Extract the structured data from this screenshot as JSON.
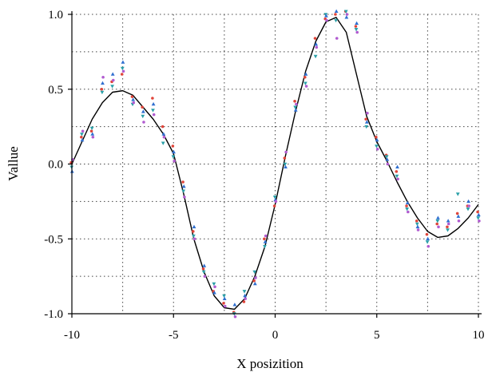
{
  "chart_data": {
    "type": "line",
    "title": "",
    "xlabel": "X posizition",
    "ylabel": "Vallue",
    "xlim": [
      -10,
      10
    ],
    "ylim": [
      -1.0,
      1.0
    ],
    "x_ticks": [
      -10,
      -5,
      0,
      5,
      10
    ],
    "x_tick_labels": [
      "-10",
      "-5",
      "0",
      "5",
      "10"
    ],
    "y_ticks": [
      -1.0,
      -0.5,
      0.0,
      0.5,
      1.0
    ],
    "y_tick_labels": [
      "-1.0",
      "-0.5",
      "0.0",
      "0.5",
      "1.0"
    ],
    "grid": true,
    "grid_style": "dotted",
    "curve": {
      "color": "#000000",
      "x": [
        -10,
        -9.5,
        -9,
        -8.5,
        -8,
        -7.5,
        -7,
        -6.5,
        -6,
        -5.5,
        -5,
        -4.5,
        -4,
        -3.5,
        -3,
        -2.5,
        -2,
        -1.5,
        -1,
        -0.5,
        0,
        0.5,
        1,
        1.5,
        2,
        2.5,
        3,
        3.5,
        4,
        4.5,
        5,
        5.5,
        6,
        6.5,
        7,
        7.5,
        8,
        8.5,
        9,
        9.5,
        10
      ],
      "y": [
        0.0,
        0.15,
        0.3,
        0.41,
        0.48,
        0.49,
        0.46,
        0.38,
        0.3,
        0.2,
        0.07,
        -0.2,
        -0.5,
        -0.72,
        -0.88,
        -0.96,
        -0.97,
        -0.9,
        -0.75,
        -0.55,
        -0.27,
        0.05,
        0.35,
        0.62,
        0.82,
        0.95,
        0.98,
        0.88,
        0.6,
        0.32,
        0.15,
        0.02,
        -0.12,
        -0.25,
        -0.36,
        -0.45,
        -0.49,
        -0.48,
        -0.43,
        -0.36,
        -0.27
      ]
    },
    "series": [
      {
        "color": "#e0453a",
        "marker": "dot",
        "x": [
          -10,
          -9.5,
          -9,
          -8.5,
          -8,
          -7.5,
          -7,
          -6.5,
          -6,
          -5.5,
          -5,
          -4.5,
          -4,
          -3.5,
          -3,
          -2.5,
          -2,
          -1.5,
          -1,
          -0.5,
          0,
          0.5,
          1,
          1.5,
          2,
          2.5,
          3,
          3.5,
          4,
          4.5,
          5,
          5.5,
          6,
          6.5,
          7,
          7.5,
          8,
          8.5,
          9,
          9.5,
          10
        ],
        "values": [
          0.01,
          0.18,
          0.22,
          0.5,
          0.55,
          0.6,
          0.45,
          0.38,
          0.44,
          0.25,
          0.12,
          -0.12,
          -0.45,
          -0.7,
          -0.85,
          -0.93,
          -0.99,
          -0.92,
          -0.78,
          -0.5,
          -0.28,
          0.04,
          0.42,
          0.58,
          0.84,
          0.97,
          1.0,
          1.02,
          0.92,
          0.3,
          0.18,
          0.06,
          -0.05,
          -0.28,
          -0.38,
          -0.47,
          -0.4,
          -0.42,
          -0.33,
          -0.28,
          -0.32
        ]
      },
      {
        "color": "#2aa0a8",
        "marker": "triangle-down",
        "x": [
          -10,
          -9.5,
          -9,
          -8.5,
          -8,
          -7.5,
          -7,
          -6.5,
          -6,
          -5.5,
          -5,
          -4.5,
          -4,
          -3.5,
          -3,
          -2.5,
          -2,
          -1.5,
          -1,
          -0.5,
          0,
          0.5,
          1,
          1.5,
          2,
          2.5,
          3,
          3.5,
          4,
          4.5,
          5,
          5.5,
          6,
          6.5,
          7,
          7.5,
          8,
          8.5,
          9,
          9.5,
          10
        ],
        "values": [
          -0.02,
          0.2,
          0.24,
          0.48,
          0.52,
          0.64,
          0.4,
          0.32,
          0.36,
          0.14,
          0.05,
          -0.18,
          -0.48,
          -0.72,
          -0.8,
          -0.88,
          -1.0,
          -0.85,
          -0.72,
          -0.55,
          -0.22,
          0.0,
          0.38,
          0.54,
          0.72,
          1.0,
          0.96,
          1.02,
          0.9,
          0.25,
          0.12,
          0.05,
          -0.08,
          -0.3,
          -0.4,
          -0.52,
          -0.38,
          -0.44,
          -0.2,
          -0.3,
          -0.36
        ]
      },
      {
        "color": "#2f6fd0",
        "marker": "triangle-up",
        "x": [
          -10,
          -9.5,
          -9,
          -8.5,
          -8,
          -7.5,
          -7,
          -6.5,
          -6,
          -5.5,
          -5,
          -4.5,
          -4,
          -3.5,
          -3,
          -2.5,
          -2,
          -1.5,
          -1,
          -0.5,
          0,
          0.5,
          1,
          1.5,
          2,
          2.5,
          3,
          3.5,
          4,
          4.5,
          5,
          5.5,
          6,
          6.5,
          7,
          7.5,
          8,
          8.5,
          9,
          9.5,
          10
        ],
        "values": [
          -0.05,
          0.16,
          0.2,
          0.54,
          0.6,
          0.68,
          0.43,
          0.35,
          0.4,
          0.2,
          0.08,
          -0.15,
          -0.42,
          -0.68,
          -0.86,
          -0.9,
          -0.94,
          -0.88,
          -0.8,
          -0.52,
          -0.24,
          -0.02,
          0.36,
          0.6,
          0.8,
          0.99,
          1.02,
          0.98,
          0.94,
          0.28,
          0.16,
          0.03,
          -0.02,
          -0.26,
          -0.42,
          -0.5,
          -0.36,
          -0.38,
          -0.35,
          -0.25,
          -0.34
        ]
      },
      {
        "color": "#b15bd0",
        "marker": "dot",
        "x": [
          -10,
          -9.5,
          -9,
          -8.5,
          -8,
          -7.5,
          -7,
          -6.5,
          -6,
          -5.5,
          -5,
          -4.5,
          -4,
          -3.5,
          -3,
          -2.5,
          -2,
          -1.5,
          -1,
          -0.5,
          0,
          0.5,
          1,
          1.5,
          2,
          2.5,
          3,
          3.5,
          4,
          4.5,
          5,
          5.5,
          6,
          6.5,
          7,
          7.5,
          8,
          8.5,
          9,
          9.5,
          10
        ],
        "values": [
          0.03,
          0.22,
          0.18,
          0.58,
          0.56,
          0.62,
          0.41,
          0.28,
          0.33,
          0.18,
          0.02,
          -0.22,
          -0.5,
          -0.75,
          -0.82,
          -0.95,
          -1.02,
          -0.9,
          -0.76,
          -0.48,
          -0.25,
          0.08,
          0.4,
          0.52,
          0.78,
          0.96,
          0.84,
          1.0,
          0.88,
          0.34,
          0.1,
          0.0,
          -0.1,
          -0.32,
          -0.44,
          -0.55,
          -0.42,
          -0.4,
          -0.38,
          -0.28,
          -0.38
        ]
      }
    ]
  }
}
